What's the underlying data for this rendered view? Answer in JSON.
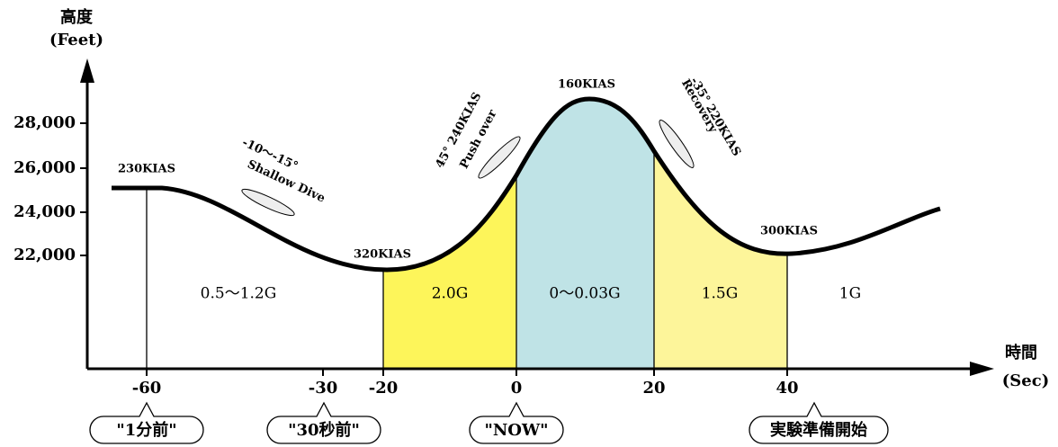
{
  "y_axis": {
    "title": "高度",
    "unit": "(Feet)",
    "ticks": [
      "28,000",
      "26,000",
      "24,000",
      "22,000"
    ]
  },
  "x_axis": {
    "title": "時間",
    "unit": "(Sec)",
    "ticks": [
      "-60",
      "-30",
      "-20",
      "0",
      "20",
      "40"
    ]
  },
  "speeds": [
    "230KIAS",
    "320KIAS",
    "160KIAS",
    "300KIAS"
  ],
  "maneuvers": [
    [
      "-10〜-15°",
      "Shallow Dive"
    ],
    [
      "45° 240KIAS",
      "Push over"
    ],
    [
      "-35° 220KIAS",
      "Recovery"
    ]
  ],
  "phases": [
    "0.5〜1.2G",
    "2.0G",
    "0〜0.03G",
    "1.5G",
    "1G"
  ],
  "callouts": [
    "\"1分前\"",
    "\"30秒前\"",
    "\"NOW\"",
    "実験準備開始"
  ]
}
